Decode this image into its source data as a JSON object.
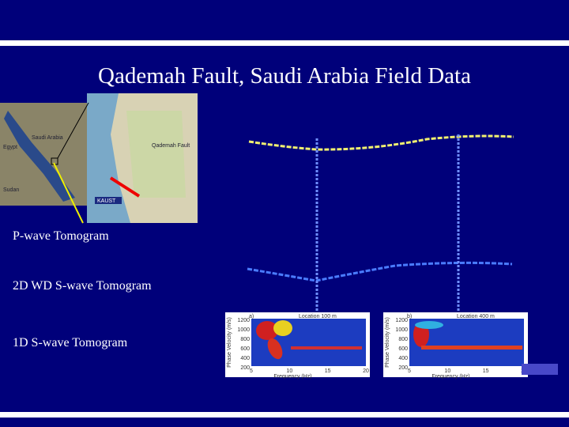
{
  "title": "Qademah Fault, Saudi Arabia Field Data",
  "labels": [
    "P-wave Tomogram",
    "2D WD S-wave Tomogram",
    "1D S-wave Tomogram"
  ],
  "map": {
    "labels": [
      "Saudi Arabia",
      "Egypt",
      "Sudan",
      "Qademah Fault",
      "KAUST"
    ]
  },
  "panels": [
    {
      "tag": "a)",
      "location": "Location 100 m",
      "y_label": "Phase Velocity (m/s)",
      "x_label": "Frequency (Hz)",
      "y_ticks": [
        "1200",
        "1000",
        "800",
        "600",
        "400",
        "200"
      ],
      "x_ticks": [
        "5",
        "10",
        "15",
        "20"
      ]
    },
    {
      "tag": "b)",
      "location": "Location 400 m",
      "y_label": "Phase Velocity (m/s)",
      "x_label": "Frequency (Hz)",
      "y_ticks": [
        "1200",
        "1000",
        "800",
        "600",
        "400",
        "200"
      ],
      "x_ticks": [
        "5",
        "10",
        "15",
        "20"
      ]
    }
  ]
}
